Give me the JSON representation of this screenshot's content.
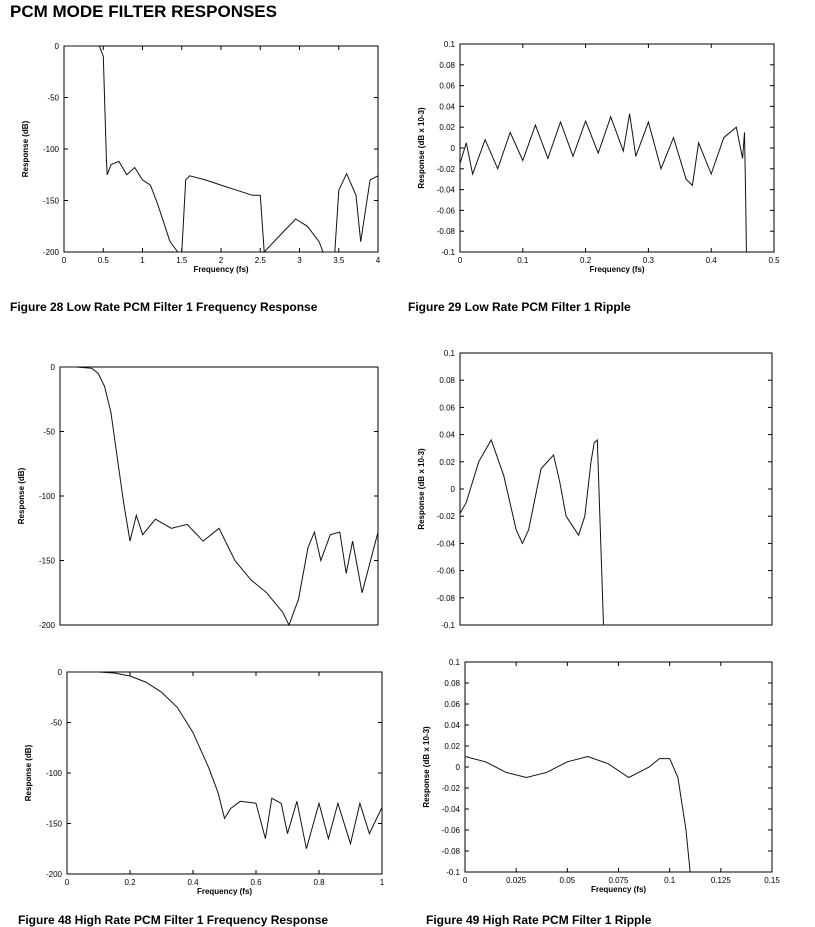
{
  "page_title": "PCM MODE FILTER RESPONSES",
  "captions": {
    "fig28": "Figure 28 Low Rate PCM Filter 1 Frequency Response",
    "fig29": "Figure 29 Low Rate PCM Filter 1 Ripple",
    "fig48": "Figure 48 High Rate PCM Filter 1 Frequency Response",
    "fig49": "Figure 49 High Rate PCM Filter 1 Ripple"
  },
  "chart_data": [
    {
      "id": "fig28",
      "type": "line",
      "xlabel": "Frequency (fs)",
      "ylabel": "Response (dB)",
      "xlim": [
        0,
        4
      ],
      "ylim": [
        -200,
        0
      ],
      "xticks": [
        "0",
        "0.5",
        "1",
        "1.5",
        "2",
        "2.5",
        "3",
        "3.5",
        "4"
      ],
      "yticks": [
        "0",
        "-50",
        "-100",
        "-150",
        "-200"
      ],
      "series": [
        {
          "x": [
            0,
            0.45,
            0.5,
            0.54,
            0.55,
            0.6,
            0.7,
            0.8,
            0.9,
            1.0,
            1.1,
            1.2,
            1.35,
            1.45,
            1.5,
            1.55,
            1.6,
            1.8,
            2.0,
            2.2,
            2.4,
            2.5,
            2.55,
            2.8,
            2.95,
            3.1,
            3.25,
            3.3,
            3.45,
            3.5,
            3.6,
            3.72,
            3.78,
            3.9,
            4.0
          ],
          "y": [
            0,
            0,
            -10,
            -110,
            -125,
            -115,
            -112,
            -125,
            -118,
            -130,
            -135,
            -155,
            -190,
            -200,
            -200,
            -130,
            -126,
            -130,
            -135,
            -140,
            -145,
            -145,
            -200,
            -180,
            -168,
            -175,
            -190,
            -200,
            -200,
            -140,
            -124,
            -145,
            -190,
            -130,
            -126
          ]
        }
      ]
    },
    {
      "id": "fig29",
      "type": "line",
      "xlabel": "Frequency (fs)",
      "ylabel": "Response (dB x 10-3)",
      "xlim": [
        0,
        0.5
      ],
      "ylim": [
        -0.1,
        0.1
      ],
      "xticks": [
        "0",
        "0.1",
        "0.2",
        "0.3",
        "0.4",
        "0.5"
      ],
      "yticks": [
        "0.1",
        "0.08",
        "0.06",
        "0.04",
        "0.02",
        "0",
        "-0.02",
        "-0.04",
        "-0.06",
        "-0.08",
        "-0.1"
      ],
      "series": [
        {
          "x": [
            0,
            0.01,
            0.02,
            0.04,
            0.06,
            0.08,
            0.1,
            0.12,
            0.14,
            0.16,
            0.18,
            0.2,
            0.22,
            0.24,
            0.26,
            0.27,
            0.28,
            0.3,
            0.32,
            0.34,
            0.36,
            0.37,
            0.38,
            0.4,
            0.42,
            0.44,
            0.45,
            0.453,
            0.455,
            0.456
          ],
          "y": [
            -0.015,
            0.005,
            -0.025,
            0.008,
            -0.02,
            0.015,
            -0.012,
            0.022,
            -0.01,
            0.025,
            -0.008,
            0.026,
            -0.005,
            0.03,
            -0.003,
            0.033,
            -0.008,
            0.025,
            -0.02,
            0.01,
            -0.03,
            -0.036,
            0.005,
            -0.025,
            0.01,
            0.02,
            -0.01,
            0.015,
            -0.05,
            -0.1
          ]
        }
      ]
    },
    {
      "id": "fig47",
      "type": "line",
      "xlabel": "",
      "ylabel": "Response (dB)",
      "xlim": [
        0,
        1
      ],
      "ylim": [
        -200,
        0
      ],
      "xticks": [],
      "yticks": [
        "0",
        "-50",
        "-100",
        "-150",
        "-200"
      ],
      "series": [
        {
          "x": [
            0,
            0.05,
            0.1,
            0.12,
            0.14,
            0.16,
            0.18,
            0.2,
            0.22,
            0.24,
            0.26,
            0.3,
            0.35,
            0.4,
            0.45,
            0.5,
            0.55,
            0.6,
            0.65,
            0.7,
            0.72,
            0.75,
            0.78,
            0.8,
            0.82,
            0.85,
            0.88,
            0.9,
            0.92,
            0.95,
            1.0
          ],
          "y": [
            0,
            0,
            -1,
            -5,
            -15,
            -35,
            -70,
            -105,
            -135,
            -115,
            -130,
            -118,
            -125,
            -122,
            -135,
            -125,
            -150,
            -165,
            -175,
            -190,
            -200,
            -180,
            -140,
            -128,
            -150,
            -130,
            -128,
            -160,
            -135,
            -175,
            -128
          ]
        }
      ]
    },
    {
      "id": "fig47r",
      "type": "line",
      "xlabel": "",
      "ylabel": "Response (dB x 10-3)",
      "xlim": [
        0,
        0.5
      ],
      "ylim": [
        -0.1,
        0.1
      ],
      "xticks": [],
      "yticks": [
        "0.1",
        "0.08",
        "0.06",
        "0.04",
        "0.02",
        "0",
        "-0.02",
        "-0.04",
        "-0.06",
        "-0.08",
        "-0.1"
      ],
      "series": [
        {
          "x": [
            0,
            0.01,
            0.03,
            0.05,
            0.07,
            0.09,
            0.1,
            0.11,
            0.13,
            0.15,
            0.16,
            0.17,
            0.19,
            0.2,
            0.21,
            0.215,
            0.22,
            0.23
          ],
          "y": [
            -0.018,
            -0.01,
            0.02,
            0.036,
            0.01,
            -0.03,
            -0.04,
            -0.03,
            0.015,
            0.025,
            0.005,
            -0.02,
            -0.034,
            -0.02,
            0.02,
            0.034,
            0.036,
            -0.1
          ]
        }
      ]
    },
    {
      "id": "fig48",
      "type": "line",
      "xlabel": "Frequency (fs)",
      "ylabel": "Response (dB)",
      "xlim": [
        0,
        1
      ],
      "ylim": [
        -200,
        0
      ],
      "xticks": [
        "0",
        "0.2",
        "0.4",
        "0.6",
        "0.8",
        "1"
      ],
      "yticks": [
        "0",
        "-50",
        "-100",
        "-150",
        "-200"
      ],
      "series": [
        {
          "x": [
            0,
            0.1,
            0.15,
            0.2,
            0.25,
            0.3,
            0.35,
            0.4,
            0.45,
            0.48,
            0.5,
            0.52,
            0.55,
            0.6,
            0.63,
            0.65,
            0.68,
            0.7,
            0.73,
            0.76,
            0.8,
            0.83,
            0.86,
            0.9,
            0.93,
            0.96,
            1.0
          ],
          "y": [
            0,
            0,
            -1,
            -4,
            -10,
            -20,
            -35,
            -60,
            -95,
            -120,
            -145,
            -135,
            -128,
            -130,
            -165,
            -125,
            -130,
            -160,
            -128,
            -175,
            -130,
            -165,
            -130,
            -170,
            -130,
            -160,
            -134
          ]
        }
      ]
    },
    {
      "id": "fig49",
      "type": "line",
      "xlabel": "Frequency (fs)",
      "ylabel": "Response (dB x 10-3)",
      "xlim": [
        0,
        0.15
      ],
      "ylim": [
        -0.1,
        0.1
      ],
      "xticks": [
        "0",
        "0.025",
        "0.05",
        "0.075",
        "0.1",
        "0.125",
        "0.15"
      ],
      "yticks": [
        "0.1",
        "0.08",
        "0.06",
        "0.04",
        "0.02",
        "0",
        "-0.02",
        "-0.04",
        "-0.06",
        "-0.08",
        "-0.1"
      ],
      "series": [
        {
          "x": [
            0,
            0.01,
            0.02,
            0.03,
            0.04,
            0.05,
            0.06,
            0.07,
            0.08,
            0.09,
            0.095,
            0.1,
            0.104,
            0.108,
            0.11
          ],
          "y": [
            0.01,
            0.005,
            -0.005,
            -0.01,
            -0.005,
            0.005,
            0.01,
            0.003,
            -0.01,
            0.0,
            0.008,
            0.008,
            -0.01,
            -0.06,
            -0.1
          ]
        }
      ]
    }
  ]
}
